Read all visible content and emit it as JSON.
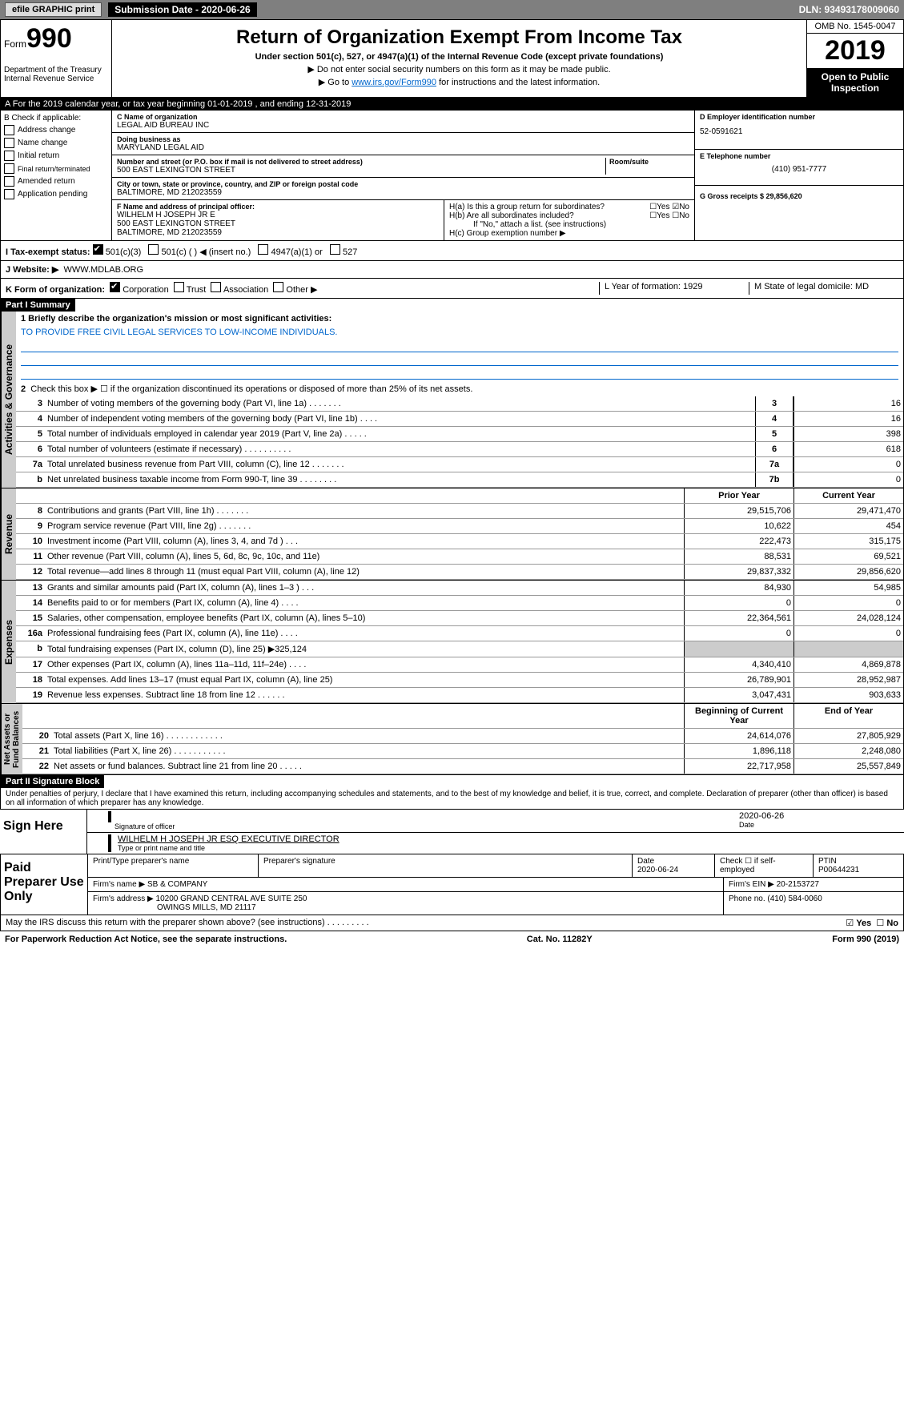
{
  "topbar": {
    "efile": "efile GRAPHIC print",
    "submission": "Submission Date - 2020-06-26",
    "dln": "DLN: 93493178009060"
  },
  "header": {
    "form_word": "Form",
    "form_num": "990",
    "dept": "Department of the Treasury\nInternal Revenue Service",
    "main_title": "Return of Organization Exempt From Income Tax",
    "sub_title": "Under section 501(c), 527, or 4947(a)(1) of the Internal Revenue Code (except private foundations)",
    "inst1": "▶ Do not enter social security numbers on this form as it may be made public.",
    "inst2_pre": "▶ Go to ",
    "inst2_link": "www.irs.gov/Form990",
    "inst2_post": " for instructions and the latest information.",
    "omb": "OMB No. 1545-0047",
    "year": "2019",
    "open": "Open to Public\nInspection"
  },
  "section_a": "A   For the 2019 calendar year, or tax year beginning 01-01-2019        , and ending 12-31-2019",
  "section_b": {
    "label": "B Check if applicable:",
    "items": [
      "Address change",
      "Name change",
      "Initial return",
      "Final return/terminated",
      "Amended return",
      "Application pending"
    ]
  },
  "section_c": {
    "name_label": "C Name of organization",
    "name": "LEGAL AID BUREAU INC",
    "dba_label": "Doing business as",
    "dba": "MARYLAND LEGAL AID",
    "street_label": "Number and street (or P.O. box if mail is not delivered to street address)",
    "street": "500 EAST LEXINGTON STREET",
    "room_label": "Room/suite",
    "city_label": "City or town, state or province, country, and ZIP or foreign postal code",
    "city": "BALTIMORE, MD  212023559"
  },
  "section_d": {
    "ein_label": "D Employer identification number",
    "ein": "52-0591621",
    "phone_label": "E Telephone number",
    "phone": "(410) 951-7777",
    "gross_label": "G Gross receipts $ 29,856,620"
  },
  "section_f": {
    "label": "F Name and address of principal officer:",
    "line1": "WILHELM H JOSEPH JR E",
    "line2": "500 EAST LEXINGTON STREET",
    "line3": "BALTIMORE, MD  212023559"
  },
  "section_h": {
    "ha": "H(a)   Is this a group return for subordinates?",
    "hb": "H(b)   Are all subordinates included?",
    "hb_note": "If \"No,\" attach a list. (see instructions)",
    "hc": "H(c)   Group exemption number ▶"
  },
  "tax_status": {
    "label": "I    Tax-exempt status:",
    "opts": [
      "501(c)(3)",
      "501(c) (   ) ◀ (insert no.)",
      "4947(a)(1) or",
      "527"
    ]
  },
  "website": {
    "label": "J   Website: ▶",
    "value": "WWW.MDLAB.ORG"
  },
  "form_k": {
    "label": "K Form of organization:",
    "opts": [
      "Corporation",
      "Trust",
      "Association",
      "Other ▶"
    ],
    "l_label": "L Year of formation: 1929",
    "m_label": "M State of legal domicile: MD"
  },
  "part1": {
    "title": "Part I      Summary",
    "q1": "1  Briefly describe the organization's mission or most significant activities:",
    "mission": "TO PROVIDE FREE CIVIL LEGAL SERVICES TO LOW-INCOME INDIVIDUALS.",
    "q2": "Check this box ▶ ☐ if the organization discontinued its operations or disposed of more than 25% of its net assets."
  },
  "governance_label": "Activities & Governance",
  "revenue_label": "Revenue",
  "expenses_label": "Expenses",
  "netassets_label": "Net Assets or\nFund Balances",
  "gov_lines": [
    {
      "n": "3",
      "t": "Number of voting members of the governing body (Part VI, line 1a)  .    .    .    .    .    .    .",
      "r": "3",
      "v": "16"
    },
    {
      "n": "4",
      "t": "Number of independent voting members of the governing body (Part VI, line 1b)    .    .    .    .",
      "r": "4",
      "v": "16"
    },
    {
      "n": "5",
      "t": "Total number of individuals employed in calendar year 2019 (Part V, line 2a)   .    .    .    .    .",
      "r": "5",
      "v": "398"
    },
    {
      "n": "6",
      "t": "Total number of volunteers (estimate if necessary)    .    .    .    .    .    .    .    .    .    .",
      "r": "6",
      "v": "618"
    },
    {
      "n": "7a",
      "t": "Total unrelated business revenue from Part VIII, column (C), line 12   .    .    .    .    .    .    .",
      "r": "7a",
      "v": "0"
    },
    {
      "n": "b",
      "t": "Net unrelated business taxable income from Form 990-T, line 39    .    .    .    .    .    .    .    .",
      "r": "7b",
      "v": "0"
    }
  ],
  "col_headers": {
    "prior": "Prior Year",
    "current": "Current Year"
  },
  "revenue_lines": [
    {
      "n": "8",
      "t": "Contributions and grants (Part VIII, line 1h)   .    .    .    .    .    .    .",
      "p": "29,515,706",
      "c": "29,471,470"
    },
    {
      "n": "9",
      "t": "Program service revenue (Part VIII, line 2g)    .    .    .    .    .    .    .",
      "p": "10,622",
      "c": "454"
    },
    {
      "n": "10",
      "t": "Investment income (Part VIII, column (A), lines 3, 4, and 7d )   .    .    .",
      "p": "222,473",
      "c": "315,175"
    },
    {
      "n": "11",
      "t": "Other revenue (Part VIII, column (A), lines 5, 6d, 8c, 9c, 10c, and 11e)",
      "p": "88,531",
      "c": "69,521"
    },
    {
      "n": "12",
      "t": "Total revenue—add lines 8 through 11 (must equal Part VIII, column (A), line 12)",
      "p": "29,837,332",
      "c": "29,856,620"
    }
  ],
  "expense_lines": [
    {
      "n": "13",
      "t": "Grants and similar amounts paid (Part IX, column (A), lines 1–3 )   .    .    .",
      "p": "84,930",
      "c": "54,985"
    },
    {
      "n": "14",
      "t": "Benefits paid to or for members (Part IX, column (A), line 4)   .    .    .    .",
      "p": "0",
      "c": "0"
    },
    {
      "n": "15",
      "t": "Salaries, other compensation, employee benefits (Part IX, column (A), lines 5–10)",
      "p": "22,364,561",
      "c": "24,028,124"
    },
    {
      "n": "16a",
      "t": "Professional fundraising fees (Part IX, column (A), line 11e)    .    .    .    .",
      "p": "0",
      "c": "0"
    },
    {
      "n": "b",
      "t": "Total fundraising expenses (Part IX, column (D), line 25) ▶325,124",
      "p": "shaded",
      "c": "shaded"
    },
    {
      "n": "17",
      "t": "Other expenses (Part IX, column (A), lines 11a–11d, 11f–24e)   .    .    .    .",
      "p": "4,340,410",
      "c": "4,869,878"
    },
    {
      "n": "18",
      "t": "Total expenses. Add lines 13–17 (must equal Part IX, column (A), line 25)",
      "p": "26,789,901",
      "c": "28,952,987"
    },
    {
      "n": "19",
      "t": "Revenue less expenses. Subtract line 18 from line 12  .    .    .    .    .    .",
      "p": "3,047,431",
      "c": "903,633"
    }
  ],
  "balance_headers": {
    "begin": "Beginning of Current Year",
    "end": "End of Year"
  },
  "balance_lines": [
    {
      "n": "20",
      "t": "Total assets (Part X, line 16)  .    .    .    .    .    .    .    .    .    .    .    .",
      "p": "24,614,076",
      "c": "27,805,929"
    },
    {
      "n": "21",
      "t": "Total liabilities (Part X, line 26)   .    .    .    .    .    .    .    .    .    .    .",
      "p": "1,896,118",
      "c": "2,248,080"
    },
    {
      "n": "22",
      "t": "Net assets or fund balances. Subtract line 21 from line 20   .    .    .    .    .",
      "p": "22,717,958",
      "c": "25,557,849"
    }
  ],
  "part2": {
    "title": "Part II      Signature Block",
    "perjury": "Under penalties of perjury, I declare that I have examined this return, including accompanying schedules and statements, and to the best of my knowledge and belief, it is true, correct, and complete. Declaration of preparer (other than officer) is based on all information of which preparer has any knowledge."
  },
  "sign": {
    "label": "Sign Here",
    "sig_of_officer": "Signature of officer",
    "date": "2020-06-26",
    "date_label": "Date",
    "name": "WILHELM H JOSEPH JR ESQ  EXECUTIVE DIRECTOR",
    "name_label": "Type or print name and title"
  },
  "paid": {
    "label": "Paid Preparer Use Only",
    "h1": "Print/Type preparer's name",
    "h2": "Preparer's signature",
    "h3": "Date",
    "date": "2020-06-24",
    "check_label": "Check ☐ if self-employed",
    "ptin_label": "PTIN",
    "ptin": "P00644231",
    "firm_name_label": "Firm's name    ▶",
    "firm_name": "SB & COMPANY",
    "firm_ein_label": "Firm's EIN ▶",
    "firm_ein": "20-2153727",
    "firm_addr_label": "Firm's address ▶",
    "firm_addr1": "10200 GRAND CENTRAL AVE SUITE 250",
    "firm_addr2": "OWINGS MILLS, MD  21117",
    "phone_label": "Phone no.",
    "phone": "(410) 584-0060"
  },
  "discuss": "May the IRS discuss this return with the preparer shown above? (see instructions)   .    .    .    .    .    .    .    .    .",
  "footer": {
    "pra": "For Paperwork Reduction Act Notice, see the separate instructions.",
    "cat": "Cat. No. 11282Y",
    "form": "Form 990 (2019)"
  }
}
